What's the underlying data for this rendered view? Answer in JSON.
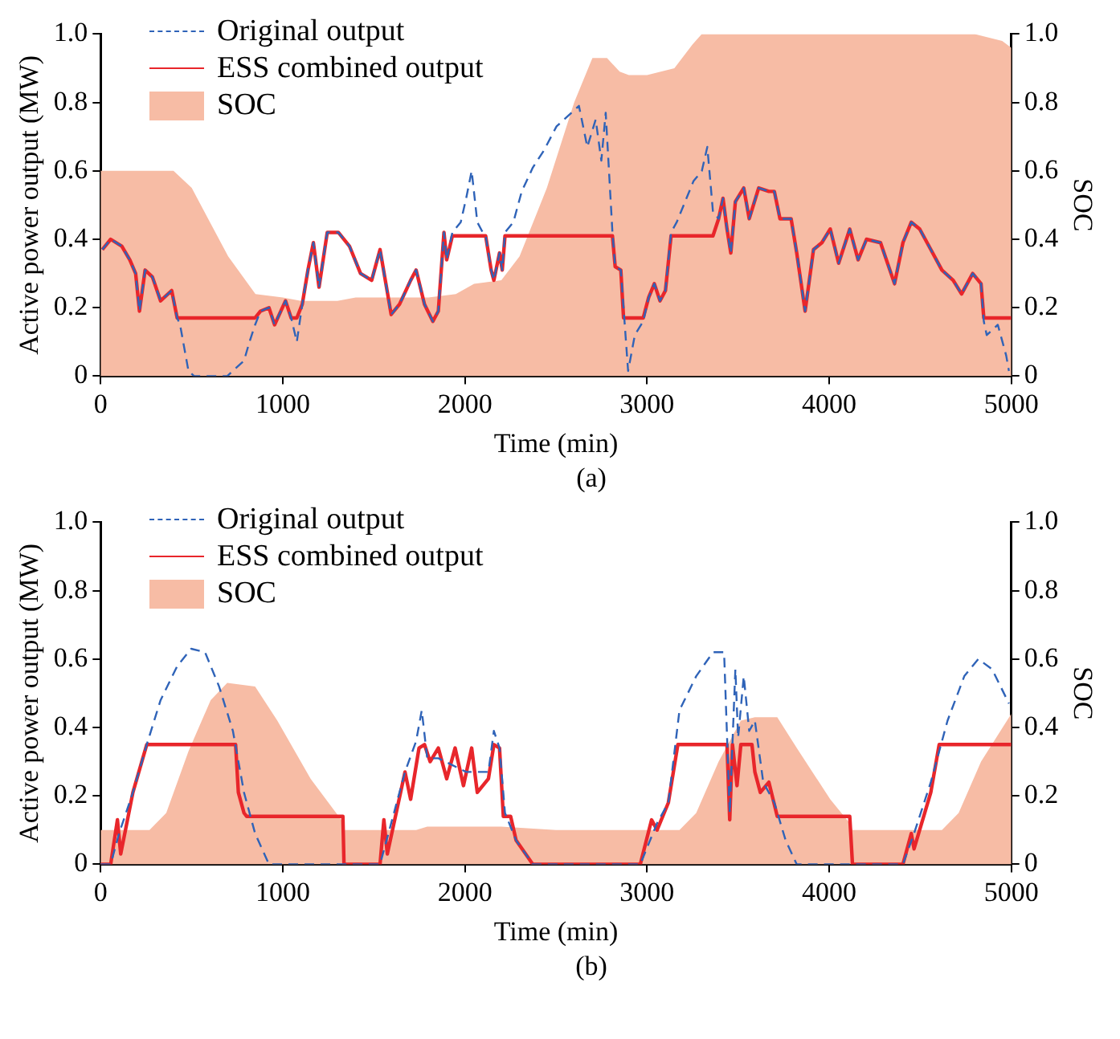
{
  "chart_data": [
    {
      "type": "line",
      "xlabel": "Time (min)",
      "ylabel": "Active power output (MW)",
      "y2label": "SOC",
      "annotations": [
        "(a)"
      ],
      "legend": "top left",
      "xlim": [
        0,
        5000
      ],
      "xticks": [
        0,
        1000,
        2000,
        3000,
        4000,
        5000
      ],
      "ylim": [
        0,
        1
      ],
      "yticks": [
        0,
        0.2,
        0.4,
        0.6,
        0.8,
        {
          "value": 1,
          "label": "1.0"
        }
      ],
      "y2lim": [
        0,
        1
      ],
      "y2ticks": [
        0,
        0.2,
        0.4,
        0.6,
        0.8,
        {
          "value": 1,
          "label": "1.0"
        }
      ],
      "grid": false,
      "series": [
        {
          "name": "Original output",
          "type": "line",
          "line_style": "dashed",
          "color": "#2f63b8",
          "x": [
            9,
            55,
            116,
            160,
            192,
            213,
            244,
            284,
            329,
            390,
            420,
            436,
            482,
            513,
            695,
            756,
            787,
            817,
            848,
            878,
            924,
            955,
            1015,
            1046,
            1077,
            1107,
            1138,
            1168,
            1199,
            1244,
            1305,
            1366,
            1427,
            1488,
            1534,
            1595,
            1641,
            1702,
            1732,
            1778,
            1824,
            1854,
            1885,
            1900,
            1931,
            1977,
            2007,
            2037,
            2068,
            2098,
            2114,
            2144,
            2159,
            2190,
            2205,
            2220,
            2266,
            2312,
            2373,
            2434,
            2503,
            2626,
            2672,
            2718,
            2749,
            2773,
            2810,
            2825,
            2856,
            2896,
            2933,
            2979,
            3009,
            3040,
            3071,
            3101,
            3132,
            3163,
            3209,
            3255,
            3301,
            3331,
            3362,
            3393,
            3417,
            3439,
            3460,
            3485,
            3531,
            3561,
            3613,
            3669,
            3699,
            3730,
            3791,
            3822,
            3868,
            3914,
            3960,
            4006,
            4052,
            4113,
            4159,
            4205,
            4282,
            4359,
            4405,
            4451,
            4497,
            4558,
            4619,
            4681,
            4727,
            4788,
            4834,
            4849,
            4865,
            4926,
            4972,
            4987
          ],
          "values": [
            0.37,
            0.4,
            0.38,
            0.34,
            0.3,
            0.19,
            0.31,
            0.29,
            0.22,
            0.25,
            0.17,
            0.15,
            0.015,
            0,
            0,
            0.03,
            0.045,
            0.1,
            0.15,
            0.19,
            0.2,
            0.15,
            0.22,
            0.17,
            0.1,
            0.21,
            0.31,
            0.39,
            0.26,
            0.42,
            0.42,
            0.38,
            0.3,
            0.28,
            0.37,
            0.18,
            0.21,
            0.28,
            0.31,
            0.21,
            0.16,
            0.19,
            0.42,
            0.34,
            0.42,
            0.45,
            0.52,
            0.6,
            0.45,
            0.42,
            0.41,
            0.31,
            0.28,
            0.36,
            0.31,
            0.42,
            0.45,
            0.54,
            0.61,
            0.66,
            0.73,
            0.79,
            0.67,
            0.75,
            0.63,
            0.77,
            0.42,
            0.32,
            0.31,
            0.015,
            0.12,
            0.16,
            0.23,
            0.27,
            0.22,
            0.25,
            0.42,
            0.45,
            0.51,
            0.57,
            0.6,
            0.67,
            0.48,
            0.46,
            0.52,
            0.43,
            0.36,
            0.51,
            0.55,
            0.46,
            0.55,
            0.54,
            0.54,
            0.46,
            0.46,
            0.36,
            0.19,
            0.37,
            0.39,
            0.43,
            0.33,
            0.43,
            0.34,
            0.4,
            0.39,
            0.27,
            0.39,
            0.45,
            0.43,
            0.37,
            0.31,
            0.28,
            0.24,
            0.3,
            0.27,
            0.16,
            0.12,
            0.15,
            0.06,
            0.015
          ]
        },
        {
          "name": "ESS combined output",
          "type": "line",
          "line_style": "solid",
          "color": "#e8262b",
          "x": [
            9,
            55,
            116,
            160,
            192,
            213,
            244,
            284,
            329,
            390,
            420,
            848,
            878,
            924,
            955,
            1015,
            1046,
            1077,
            1107,
            1138,
            1168,
            1199,
            1244,
            1305,
            1366,
            1427,
            1488,
            1534,
            1595,
            1641,
            1702,
            1732,
            1778,
            1824,
            1854,
            1885,
            1900,
            1931,
            2114,
            2144,
            2159,
            2190,
            2205,
            2220,
            2810,
            2825,
            2856,
            2871,
            2979,
            3009,
            3040,
            3071,
            3101,
            3132,
            3362,
            3393,
            3417,
            3439,
            3460,
            3485,
            3531,
            3561,
            3613,
            3669,
            3699,
            3730,
            3791,
            3822,
            3868,
            3914,
            3960,
            4006,
            4052,
            4113,
            4159,
            4205,
            4282,
            4359,
            4405,
            4451,
            4497,
            4558,
            4619,
            4681,
            4727,
            4788,
            4834,
            4849,
            5000
          ],
          "values": [
            0.37,
            0.4,
            0.38,
            0.34,
            0.3,
            0.19,
            0.31,
            0.29,
            0.22,
            0.25,
            0.17,
            0.17,
            0.19,
            0.2,
            0.15,
            0.22,
            0.17,
            0.17,
            0.21,
            0.31,
            0.39,
            0.26,
            0.42,
            0.42,
            0.38,
            0.3,
            0.28,
            0.37,
            0.18,
            0.21,
            0.28,
            0.31,
            0.21,
            0.16,
            0.19,
            0.42,
            0.34,
            0.41,
            0.41,
            0.31,
            0.28,
            0.36,
            0.31,
            0.41,
            0.41,
            0.32,
            0.31,
            0.17,
            0.17,
            0.23,
            0.27,
            0.22,
            0.25,
            0.41,
            0.41,
            0.46,
            0.52,
            0.43,
            0.36,
            0.51,
            0.55,
            0.46,
            0.55,
            0.54,
            0.54,
            0.46,
            0.46,
            0.36,
            0.19,
            0.37,
            0.39,
            0.43,
            0.33,
            0.43,
            0.34,
            0.4,
            0.39,
            0.27,
            0.39,
            0.45,
            0.43,
            0.37,
            0.31,
            0.28,
            0.24,
            0.3,
            0.27,
            0.17,
            0.17
          ]
        },
        {
          "name": "SOC",
          "type": "area",
          "axis": "y2",
          "color": "#f7bca5",
          "x": [
            0,
            400,
            500,
            700,
            850,
            1000,
            1100,
            1300,
            1400,
            1800,
            1950,
            2050,
            2200,
            2300,
            2450,
            2600,
            2700,
            2780,
            2850,
            2900,
            3000,
            3150,
            3250,
            3300,
            4800,
            4950,
            5000
          ],
          "values": [
            0.6,
            0.6,
            0.55,
            0.35,
            0.24,
            0.23,
            0.22,
            0.22,
            0.23,
            0.23,
            0.24,
            0.27,
            0.28,
            0.35,
            0.55,
            0.8,
            0.93,
            0.93,
            0.89,
            0.88,
            0.88,
            0.9,
            0.97,
            1,
            1,
            0.98,
            0.96
          ]
        }
      ]
    },
    {
      "type": "line",
      "xlabel": "Time (min)",
      "ylabel": "Active power output (MW)",
      "y2label": "SOC",
      "annotations": [
        "(b)"
      ],
      "legend": "top left",
      "xlim": [
        0,
        5000
      ],
      "xticks": [
        0,
        1000,
        2000,
        3000,
        4000,
        5000
      ],
      "ylim": [
        0,
        1
      ],
      "yticks": [
        0,
        0.2,
        0.4,
        0.6,
        0.8,
        {
          "value": 1,
          "label": "1.0"
        }
      ],
      "y2lim": [
        0,
        1
      ],
      "y2ticks": [
        0,
        0.2,
        0.4,
        0.6,
        0.8,
        {
          "value": 1,
          "label": "1.0"
        }
      ],
      "grid": false,
      "series": [
        {
          "name": "Original output",
          "type": "line",
          "line_style": "dashed",
          "color": "#2f63b8",
          "x": [
            0,
            55,
            101,
            177,
            253,
            329,
            421,
            497,
            573,
            650,
            726,
            787,
            848,
            924,
            1534,
            1580,
            1671,
            1732,
            1763,
            1793,
            1854,
            2007,
            2129,
            2159,
            2190,
            2220,
            2281,
            2373,
            2963,
            3055,
            3117,
            3178,
            3270,
            3362,
            3423,
            3454,
            3485,
            3500,
            3531,
            3561,
            3592,
            3638,
            3699,
            3761,
            3822,
            4405,
            4466,
            4558,
            4650,
            4742,
            4819,
            4895,
            4987
          ],
          "values": [
            0,
            0,
            0.09,
            0.21,
            0.35,
            0.48,
            0.58,
            0.63,
            0.62,
            0.52,
            0.39,
            0.21,
            0.09,
            0,
            0,
            0.09,
            0.27,
            0.36,
            0.45,
            0.31,
            0.31,
            0.27,
            0.27,
            0.39,
            0.34,
            0.15,
            0.07,
            0,
            0,
            0.12,
            0.18,
            0.45,
            0.55,
            0.62,
            0.62,
            0.15,
            0.57,
            0.37,
            0.55,
            0.39,
            0.42,
            0.24,
            0.18,
            0.07,
            0,
            0,
            0.09,
            0.24,
            0.42,
            0.55,
            0.6,
            0.57,
            0.47
          ]
        },
        {
          "name": "ESS combined output",
          "type": "line",
          "line_style": "solid",
          "color": "#e8262b",
          "x": [
            0,
            55,
            92,
            110,
            177,
            253,
            741,
            756,
            787,
            802,
            1330,
            1336,
            1534,
            1555,
            1574,
            1671,
            1702,
            1748,
            1778,
            1809,
            1854,
            1900,
            1946,
            1992,
            2037,
            2068,
            2129,
            2159,
            2190,
            2211,
            2251,
            2281,
            2373,
            2963,
            3025,
            3055,
            3117,
            3169,
            3439,
            3454,
            3469,
            3494,
            3515,
            3576,
            3592,
            3622,
            3669,
            3715,
            4113,
            4128,
            4405,
            4451,
            4466,
            4558,
            4604,
            5000
          ],
          "values": [
            0,
            0,
            0.13,
            0.03,
            0.21,
            0.35,
            0.35,
            0.21,
            0.15,
            0.14,
            0.14,
            0,
            0,
            0.13,
            0.03,
            0.27,
            0.19,
            0.34,
            0.35,
            0.3,
            0.34,
            0.25,
            0.34,
            0.23,
            0.34,
            0.21,
            0.25,
            0.35,
            0.34,
            0.14,
            0.14,
            0.07,
            0,
            0,
            0.13,
            0.1,
            0.18,
            0.35,
            0.35,
            0.13,
            0.35,
            0.23,
            0.35,
            0.35,
            0.27,
            0.21,
            0.24,
            0.14,
            0.14,
            0,
            0,
            0.09,
            0.045,
            0.21,
            0.35,
            0.35
          ]
        },
        {
          "name": "SOC",
          "type": "area",
          "axis": "y2",
          "color": "#f7bca5",
          "x": [
            0,
            268,
            360,
            482,
            604,
            695,
            848,
            970,
            1153,
            1321,
            1336,
            1732,
            1793,
            2200,
            2500,
            3178,
            3270,
            3393,
            3515,
            3592,
            3715,
            3822,
            4006,
            4113,
            4128,
            4619,
            4711,
            4834,
            5000
          ],
          "values": [
            0.1,
            0.1,
            0.15,
            0.33,
            0.48,
            0.53,
            0.52,
            0.42,
            0.25,
            0.13,
            0.1,
            0.1,
            0.11,
            0.11,
            0.1,
            0.1,
            0.15,
            0.3,
            0.42,
            0.43,
            0.43,
            0.34,
            0.19,
            0.12,
            0.1,
            0.1,
            0.15,
            0.3,
            0.44
          ]
        }
      ]
    }
  ]
}
